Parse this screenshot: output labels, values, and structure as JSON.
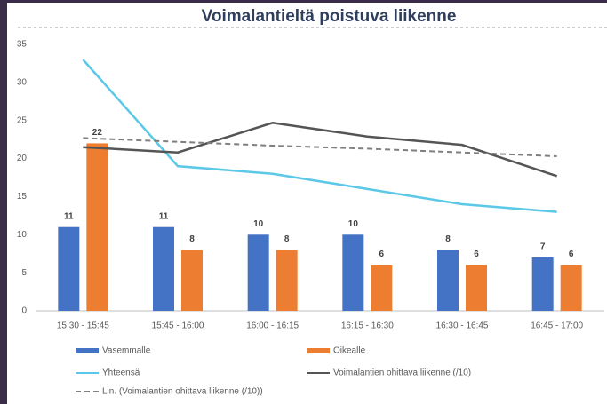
{
  "chart_data": {
    "type": "combo",
    "title": "Voimalantieltä poistuva liikenne",
    "categories": [
      "15:30 - 15:45",
      "15:45 - 16:00",
      "16:00 - 16:15",
      "16:15 - 16:30",
      "16:30 - 16:45",
      "16:45 - 17:00"
    ],
    "ylim": [
      0,
      35
    ],
    "yticks": [
      0,
      5,
      10,
      15,
      20,
      25,
      30,
      35
    ],
    "grid": false,
    "series": [
      {
        "name": "Vasemmalle",
        "type": "bar",
        "color": "#4472c4",
        "values": [
          11,
          11,
          10,
          10,
          8,
          7
        ]
      },
      {
        "name": "Oikealle",
        "type": "bar",
        "color": "#ed7d31",
        "values": [
          22,
          8,
          8,
          6,
          6,
          6
        ]
      },
      {
        "name": "Yhteensä",
        "type": "line",
        "color": "#5bc8e8",
        "values": [
          33,
          19,
          18,
          16,
          14,
          13
        ]
      },
      {
        "name": "Voimalantien ohittava liikenne (/10)",
        "type": "line",
        "color": "#555555",
        "values": [
          21.5,
          20.8,
          24.7,
          22.9,
          21.8,
          17.7
        ]
      },
      {
        "name": "Lin. (Voimalantien ohittava liikenne (/10))",
        "type": "line",
        "dashed": true,
        "color": "#7f7f7f",
        "values": [
          22.7,
          22.2,
          21.7,
          21.3,
          20.8,
          20.3
        ]
      }
    ]
  }
}
